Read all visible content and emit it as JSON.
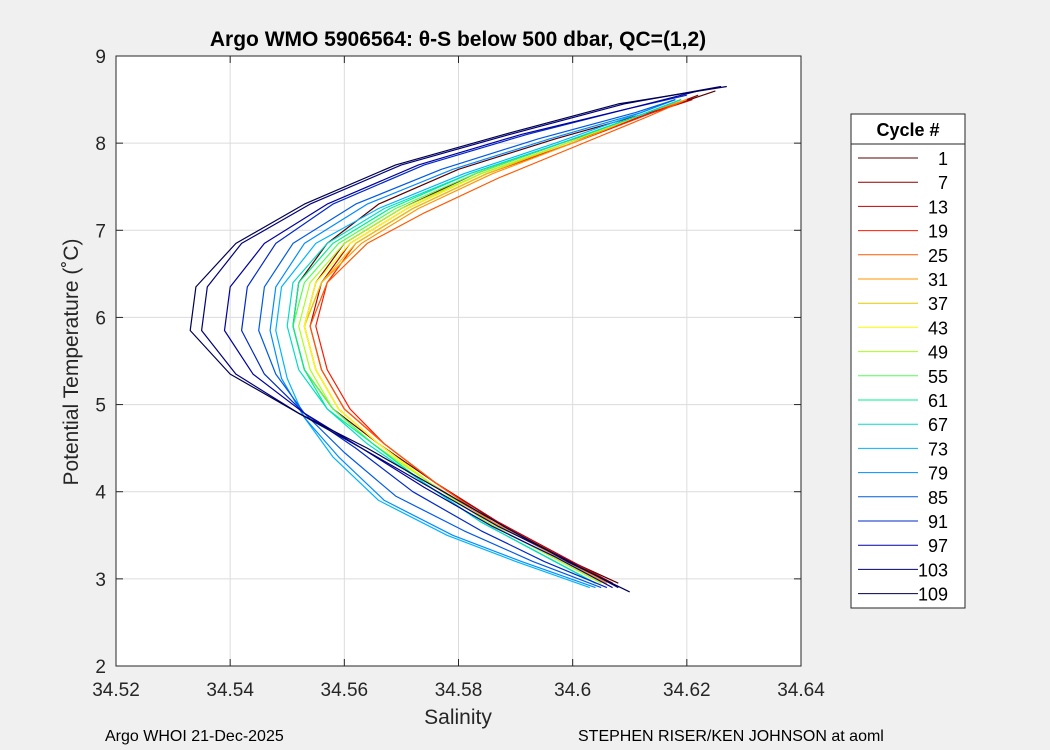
{
  "chart_data": {
    "type": "line",
    "title": "Argo WMO 5906564: θ-S below 500 dbar,  QC=(1,2)",
    "xlabel": "Salinity",
    "ylabel": "Potential Temperature (˚C)",
    "xlim": [
      34.52,
      34.64
    ],
    "ylim": [
      2,
      9
    ],
    "xticks": [
      "34.52",
      "34.54",
      "34.56",
      "34.58",
      "34.6",
      "34.62",
      "34.64"
    ],
    "yticks": [
      "2",
      "3",
      "4",
      "5",
      "6",
      "7",
      "8",
      "9"
    ],
    "grid": true,
    "legend_title": "Cycle #",
    "legend_position": "right",
    "series": [
      {
        "name": "1",
        "color": "#5a0000",
        "x": [
          34.608,
          34.598,
          34.588,
          34.576,
          34.566,
          34.558,
          34.553,
          34.551,
          34.552,
          34.557,
          34.566,
          34.58,
          34.597,
          34.616,
          34.625
        ],
        "y": [
          2.95,
          3.25,
          3.6,
          4.1,
          4.55,
          4.95,
          5.4,
          5.9,
          6.4,
          6.85,
          7.3,
          7.7,
          8.05,
          8.4,
          8.6
        ]
      },
      {
        "name": "7",
        "color": "#8c0000",
        "x": [
          34.607,
          34.596,
          34.586,
          34.575,
          34.566,
          34.559,
          34.555,
          34.553,
          34.555,
          34.56,
          34.57,
          34.583,
          34.598,
          34.614,
          34.622
        ],
        "y": [
          2.95,
          3.3,
          3.65,
          4.1,
          4.55,
          4.95,
          5.4,
          5.9,
          6.4,
          6.85,
          7.25,
          7.65,
          8.0,
          8.35,
          8.55
        ]
      },
      {
        "name": "13",
        "color": "#c00000",
        "x": [
          34.607,
          34.597,
          34.587,
          34.576,
          34.567,
          34.56,
          34.556,
          34.554,
          34.556,
          34.561,
          34.571,
          34.584,
          34.599,
          34.614,
          34.621
        ],
        "y": [
          2.95,
          3.3,
          3.65,
          4.1,
          4.55,
          4.95,
          5.4,
          5.9,
          6.4,
          6.85,
          7.25,
          7.65,
          8.0,
          8.35,
          8.5
        ]
      },
      {
        "name": "19",
        "color": "#ff1a00",
        "x": [
          34.606,
          34.596,
          34.586,
          34.576,
          34.567,
          34.561,
          34.557,
          34.555,
          34.557,
          34.562,
          34.572,
          34.585,
          34.6,
          34.614,
          34.62
        ],
        "y": [
          2.95,
          3.3,
          3.65,
          4.1,
          4.55,
          4.95,
          5.4,
          5.9,
          6.4,
          6.85,
          7.25,
          7.65,
          8.0,
          8.35,
          8.5
        ]
      },
      {
        "name": "25",
        "color": "#ff5a00",
        "x": [
          34.606,
          34.596,
          34.586,
          34.576,
          34.567,
          34.56,
          34.556,
          34.554,
          34.557,
          34.564,
          34.574,
          34.587,
          34.6,
          34.613,
          34.62
        ],
        "y": [
          2.95,
          3.3,
          3.65,
          4.1,
          4.55,
          4.95,
          5.4,
          5.9,
          6.4,
          6.85,
          7.2,
          7.6,
          7.95,
          8.3,
          8.5
        ]
      },
      {
        "name": "31",
        "color": "#ff9600",
        "x": [
          34.606,
          34.596,
          34.586,
          34.575,
          34.566,
          34.559,
          34.555,
          34.553,
          34.556,
          34.563,
          34.573,
          34.586,
          34.6,
          34.613,
          34.62
        ],
        "y": [
          2.95,
          3.3,
          3.65,
          4.1,
          4.55,
          4.95,
          5.4,
          5.9,
          6.4,
          6.85,
          7.25,
          7.65,
          8.0,
          8.35,
          8.5
        ]
      },
      {
        "name": "37",
        "color": "#e6c800",
        "x": [
          34.605,
          34.595,
          34.585,
          34.575,
          34.566,
          34.559,
          34.555,
          34.553,
          34.556,
          34.562,
          34.572,
          34.585,
          34.599,
          34.613,
          34.619
        ],
        "y": [
          2.95,
          3.3,
          3.65,
          4.1,
          4.55,
          4.95,
          5.4,
          5.9,
          6.4,
          6.85,
          7.25,
          7.65,
          8.0,
          8.35,
          8.5
        ]
      },
      {
        "name": "43",
        "color": "#ffff00",
        "x": [
          34.605,
          34.595,
          34.585,
          34.575,
          34.566,
          34.559,
          34.555,
          34.553,
          34.555,
          34.561,
          34.571,
          34.584,
          34.599,
          34.613,
          34.619
        ],
        "y": [
          2.95,
          3.3,
          3.65,
          4.1,
          4.55,
          4.95,
          5.4,
          5.9,
          6.4,
          6.85,
          7.25,
          7.65,
          8.0,
          8.35,
          8.5
        ]
      },
      {
        "name": "49",
        "color": "#a8ff1a",
        "x": [
          34.605,
          34.595,
          34.585,
          34.575,
          34.565,
          34.558,
          34.554,
          34.552,
          34.554,
          34.56,
          34.57,
          34.584,
          34.599,
          34.613,
          34.619
        ],
        "y": [
          2.95,
          3.3,
          3.65,
          4.1,
          4.55,
          4.95,
          5.4,
          5.9,
          6.4,
          6.85,
          7.25,
          7.65,
          8.0,
          8.35,
          8.5
        ]
      },
      {
        "name": "55",
        "color": "#50ff50",
        "x": [
          34.604,
          34.594,
          34.584,
          34.574,
          34.565,
          34.558,
          34.553,
          34.551,
          34.553,
          34.559,
          34.569,
          34.583,
          34.598,
          34.613,
          34.619
        ],
        "y": [
          2.95,
          3.3,
          3.65,
          4.1,
          4.55,
          4.95,
          5.4,
          5.9,
          6.4,
          6.85,
          7.25,
          7.65,
          8.0,
          8.35,
          8.5
        ]
      },
      {
        "name": "61",
        "color": "#00f08c",
        "x": [
          34.604,
          34.594,
          34.584,
          34.574,
          34.565,
          34.557,
          34.553,
          34.551,
          34.552,
          34.558,
          34.568,
          34.582,
          34.598,
          34.613,
          34.619
        ],
        "y": [
          2.95,
          3.3,
          3.65,
          4.1,
          4.55,
          4.95,
          5.4,
          5.9,
          6.4,
          6.85,
          7.25,
          7.65,
          8.0,
          8.35,
          8.5
        ]
      },
      {
        "name": "67",
        "color": "#00dcc8",
        "x": [
          34.604,
          34.594,
          34.584,
          34.574,
          34.564,
          34.557,
          34.552,
          34.55,
          34.551,
          34.557,
          34.567,
          34.582,
          34.598,
          34.613,
          34.619
        ],
        "y": [
          2.95,
          3.3,
          3.65,
          4.1,
          4.55,
          4.95,
          5.4,
          5.9,
          6.4,
          6.85,
          7.25,
          7.65,
          8.0,
          8.35,
          8.5
        ]
      },
      {
        "name": "73",
        "color": "#00b4ff",
        "x": [
          34.603,
          34.59,
          34.578,
          34.566,
          34.558,
          34.553,
          34.55,
          34.548,
          34.549,
          34.555,
          34.566,
          34.581,
          34.597,
          34.612,
          34.618
        ],
        "y": [
          2.9,
          3.2,
          3.5,
          3.9,
          4.4,
          4.85,
          5.3,
          5.85,
          6.35,
          6.85,
          7.25,
          7.65,
          8.0,
          8.35,
          8.5
        ]
      },
      {
        "name": "79",
        "color": "#008cff",
        "x": [
          34.604,
          34.591,
          34.579,
          34.567,
          34.559,
          34.553,
          34.549,
          34.547,
          34.548,
          34.553,
          34.564,
          34.579,
          34.596,
          34.612,
          34.618
        ],
        "y": [
          2.9,
          3.2,
          3.5,
          3.9,
          4.4,
          4.85,
          5.3,
          5.85,
          6.35,
          6.85,
          7.3,
          7.7,
          8.05,
          8.35,
          8.5
        ]
      },
      {
        "name": "85",
        "color": "#005ae6",
        "x": [
          34.605,
          34.593,
          34.581,
          34.569,
          34.56,
          34.553,
          34.548,
          34.545,
          34.546,
          34.551,
          34.562,
          34.577,
          34.594,
          34.611,
          34.618
        ],
        "y": [
          2.9,
          3.2,
          3.55,
          3.95,
          4.45,
          4.9,
          5.35,
          5.85,
          6.35,
          6.85,
          7.3,
          7.7,
          8.05,
          8.35,
          8.5
        ]
      },
      {
        "name": "91",
        "color": "#0028c8",
        "x": [
          34.606,
          34.595,
          34.584,
          34.572,
          34.562,
          34.553,
          34.546,
          34.542,
          34.543,
          34.548,
          34.558,
          34.574,
          34.592,
          34.61,
          34.62
        ],
        "y": [
          2.9,
          3.2,
          3.55,
          4.0,
          4.5,
          4.9,
          5.35,
          5.85,
          6.35,
          6.85,
          7.3,
          7.75,
          8.1,
          8.4,
          8.55
        ]
      },
      {
        "name": "97",
        "color": "#0000a0",
        "x": [
          34.607,
          34.597,
          34.586,
          34.574,
          34.563,
          34.553,
          34.544,
          34.539,
          34.54,
          34.546,
          34.557,
          34.573,
          34.591,
          34.61,
          34.622
        ],
        "y": [
          2.9,
          3.25,
          3.6,
          4.05,
          4.5,
          4.9,
          5.35,
          5.85,
          6.35,
          6.85,
          7.3,
          7.75,
          8.1,
          8.4,
          8.6
        ]
      },
      {
        "name": "103",
        "color": "#000078",
        "x": [
          34.608,
          34.598,
          34.587,
          34.575,
          34.563,
          34.552,
          34.541,
          34.535,
          34.536,
          34.542,
          34.554,
          34.57,
          34.589,
          34.609,
          34.626
        ],
        "y": [
          2.9,
          3.25,
          3.6,
          4.05,
          4.5,
          4.9,
          5.35,
          5.85,
          6.35,
          6.85,
          7.3,
          7.75,
          8.1,
          8.45,
          8.65
        ]
      },
      {
        "name": "109",
        "color": "#000050",
        "x": [
          34.61,
          34.599,
          34.588,
          34.576,
          34.564,
          34.552,
          34.54,
          34.533,
          34.534,
          34.541,
          34.553,
          34.569,
          34.588,
          34.608,
          34.627
        ],
        "y": [
          2.85,
          3.2,
          3.6,
          4.05,
          4.5,
          4.9,
          5.35,
          5.85,
          6.35,
          6.85,
          7.3,
          7.75,
          8.1,
          8.45,
          8.65
        ]
      }
    ]
  },
  "footer": {
    "left": "Argo WHOI 21-Dec-2025",
    "right": "STEPHEN RISER/KEN JOHNSON at aoml"
  }
}
